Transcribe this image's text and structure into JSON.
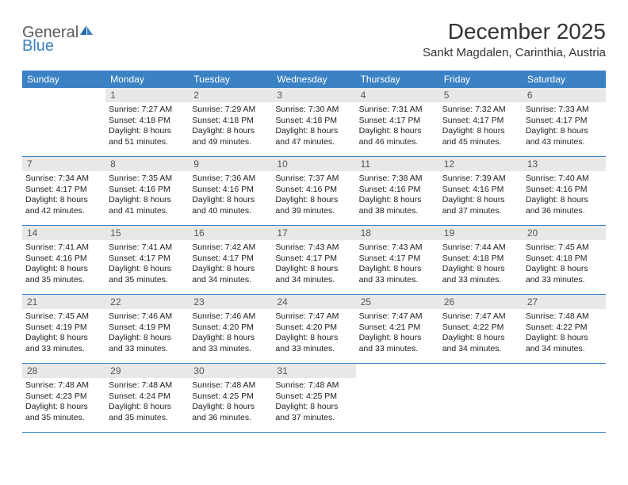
{
  "logo": {
    "part1": "General",
    "part2": "Blue"
  },
  "title": "December 2025",
  "location": "Sankt Magdalen, Carinthia, Austria",
  "colors": {
    "brand_blue": "#3b82c4",
    "brand_gray": "#58595b",
    "header_bg": "#3b82c4",
    "header_text": "#ffffff",
    "daynum_bg": "#e8e8e8",
    "daynum_text": "#555555",
    "body_text": "#222222",
    "border": "#3b82c4",
    "page_bg": "#ffffff"
  },
  "weekdays": [
    "Sunday",
    "Monday",
    "Tuesday",
    "Wednesday",
    "Thursday",
    "Friday",
    "Saturday"
  ],
  "weeks": [
    [
      {
        "n": "",
        "sunrise": "",
        "sunset": "",
        "daylight": ""
      },
      {
        "n": "1",
        "sunrise": "Sunrise: 7:27 AM",
        "sunset": "Sunset: 4:18 PM",
        "daylight": "Daylight: 8 hours and 51 minutes."
      },
      {
        "n": "2",
        "sunrise": "Sunrise: 7:29 AM",
        "sunset": "Sunset: 4:18 PM",
        "daylight": "Daylight: 8 hours and 49 minutes."
      },
      {
        "n": "3",
        "sunrise": "Sunrise: 7:30 AM",
        "sunset": "Sunset: 4:18 PM",
        "daylight": "Daylight: 8 hours and 47 minutes."
      },
      {
        "n": "4",
        "sunrise": "Sunrise: 7:31 AM",
        "sunset": "Sunset: 4:17 PM",
        "daylight": "Daylight: 8 hours and 46 minutes."
      },
      {
        "n": "5",
        "sunrise": "Sunrise: 7:32 AM",
        "sunset": "Sunset: 4:17 PM",
        "daylight": "Daylight: 8 hours and 45 minutes."
      },
      {
        "n": "6",
        "sunrise": "Sunrise: 7:33 AM",
        "sunset": "Sunset: 4:17 PM",
        "daylight": "Daylight: 8 hours and 43 minutes."
      }
    ],
    [
      {
        "n": "7",
        "sunrise": "Sunrise: 7:34 AM",
        "sunset": "Sunset: 4:17 PM",
        "daylight": "Daylight: 8 hours and 42 minutes."
      },
      {
        "n": "8",
        "sunrise": "Sunrise: 7:35 AM",
        "sunset": "Sunset: 4:16 PM",
        "daylight": "Daylight: 8 hours and 41 minutes."
      },
      {
        "n": "9",
        "sunrise": "Sunrise: 7:36 AM",
        "sunset": "Sunset: 4:16 PM",
        "daylight": "Daylight: 8 hours and 40 minutes."
      },
      {
        "n": "10",
        "sunrise": "Sunrise: 7:37 AM",
        "sunset": "Sunset: 4:16 PM",
        "daylight": "Daylight: 8 hours and 39 minutes."
      },
      {
        "n": "11",
        "sunrise": "Sunrise: 7:38 AM",
        "sunset": "Sunset: 4:16 PM",
        "daylight": "Daylight: 8 hours and 38 minutes."
      },
      {
        "n": "12",
        "sunrise": "Sunrise: 7:39 AM",
        "sunset": "Sunset: 4:16 PM",
        "daylight": "Daylight: 8 hours and 37 minutes."
      },
      {
        "n": "13",
        "sunrise": "Sunrise: 7:40 AM",
        "sunset": "Sunset: 4:16 PM",
        "daylight": "Daylight: 8 hours and 36 minutes."
      }
    ],
    [
      {
        "n": "14",
        "sunrise": "Sunrise: 7:41 AM",
        "sunset": "Sunset: 4:16 PM",
        "daylight": "Daylight: 8 hours and 35 minutes."
      },
      {
        "n": "15",
        "sunrise": "Sunrise: 7:41 AM",
        "sunset": "Sunset: 4:17 PM",
        "daylight": "Daylight: 8 hours and 35 minutes."
      },
      {
        "n": "16",
        "sunrise": "Sunrise: 7:42 AM",
        "sunset": "Sunset: 4:17 PM",
        "daylight": "Daylight: 8 hours and 34 minutes."
      },
      {
        "n": "17",
        "sunrise": "Sunrise: 7:43 AM",
        "sunset": "Sunset: 4:17 PM",
        "daylight": "Daylight: 8 hours and 34 minutes."
      },
      {
        "n": "18",
        "sunrise": "Sunrise: 7:43 AM",
        "sunset": "Sunset: 4:17 PM",
        "daylight": "Daylight: 8 hours and 33 minutes."
      },
      {
        "n": "19",
        "sunrise": "Sunrise: 7:44 AM",
        "sunset": "Sunset: 4:18 PM",
        "daylight": "Daylight: 8 hours and 33 minutes."
      },
      {
        "n": "20",
        "sunrise": "Sunrise: 7:45 AM",
        "sunset": "Sunset: 4:18 PM",
        "daylight": "Daylight: 8 hours and 33 minutes."
      }
    ],
    [
      {
        "n": "21",
        "sunrise": "Sunrise: 7:45 AM",
        "sunset": "Sunset: 4:19 PM",
        "daylight": "Daylight: 8 hours and 33 minutes."
      },
      {
        "n": "22",
        "sunrise": "Sunrise: 7:46 AM",
        "sunset": "Sunset: 4:19 PM",
        "daylight": "Daylight: 8 hours and 33 minutes."
      },
      {
        "n": "23",
        "sunrise": "Sunrise: 7:46 AM",
        "sunset": "Sunset: 4:20 PM",
        "daylight": "Daylight: 8 hours and 33 minutes."
      },
      {
        "n": "24",
        "sunrise": "Sunrise: 7:47 AM",
        "sunset": "Sunset: 4:20 PM",
        "daylight": "Daylight: 8 hours and 33 minutes."
      },
      {
        "n": "25",
        "sunrise": "Sunrise: 7:47 AM",
        "sunset": "Sunset: 4:21 PM",
        "daylight": "Daylight: 8 hours and 33 minutes."
      },
      {
        "n": "26",
        "sunrise": "Sunrise: 7:47 AM",
        "sunset": "Sunset: 4:22 PM",
        "daylight": "Daylight: 8 hours and 34 minutes."
      },
      {
        "n": "27",
        "sunrise": "Sunrise: 7:48 AM",
        "sunset": "Sunset: 4:22 PM",
        "daylight": "Daylight: 8 hours and 34 minutes."
      }
    ],
    [
      {
        "n": "28",
        "sunrise": "Sunrise: 7:48 AM",
        "sunset": "Sunset: 4:23 PM",
        "daylight": "Daylight: 8 hours and 35 minutes."
      },
      {
        "n": "29",
        "sunrise": "Sunrise: 7:48 AM",
        "sunset": "Sunset: 4:24 PM",
        "daylight": "Daylight: 8 hours and 35 minutes."
      },
      {
        "n": "30",
        "sunrise": "Sunrise: 7:48 AM",
        "sunset": "Sunset: 4:25 PM",
        "daylight": "Daylight: 8 hours and 36 minutes."
      },
      {
        "n": "31",
        "sunrise": "Sunrise: 7:48 AM",
        "sunset": "Sunset: 4:25 PM",
        "daylight": "Daylight: 8 hours and 37 minutes."
      },
      {
        "n": "",
        "sunrise": "",
        "sunset": "",
        "daylight": ""
      },
      {
        "n": "",
        "sunrise": "",
        "sunset": "",
        "daylight": ""
      },
      {
        "n": "",
        "sunrise": "",
        "sunset": "",
        "daylight": ""
      }
    ]
  ]
}
